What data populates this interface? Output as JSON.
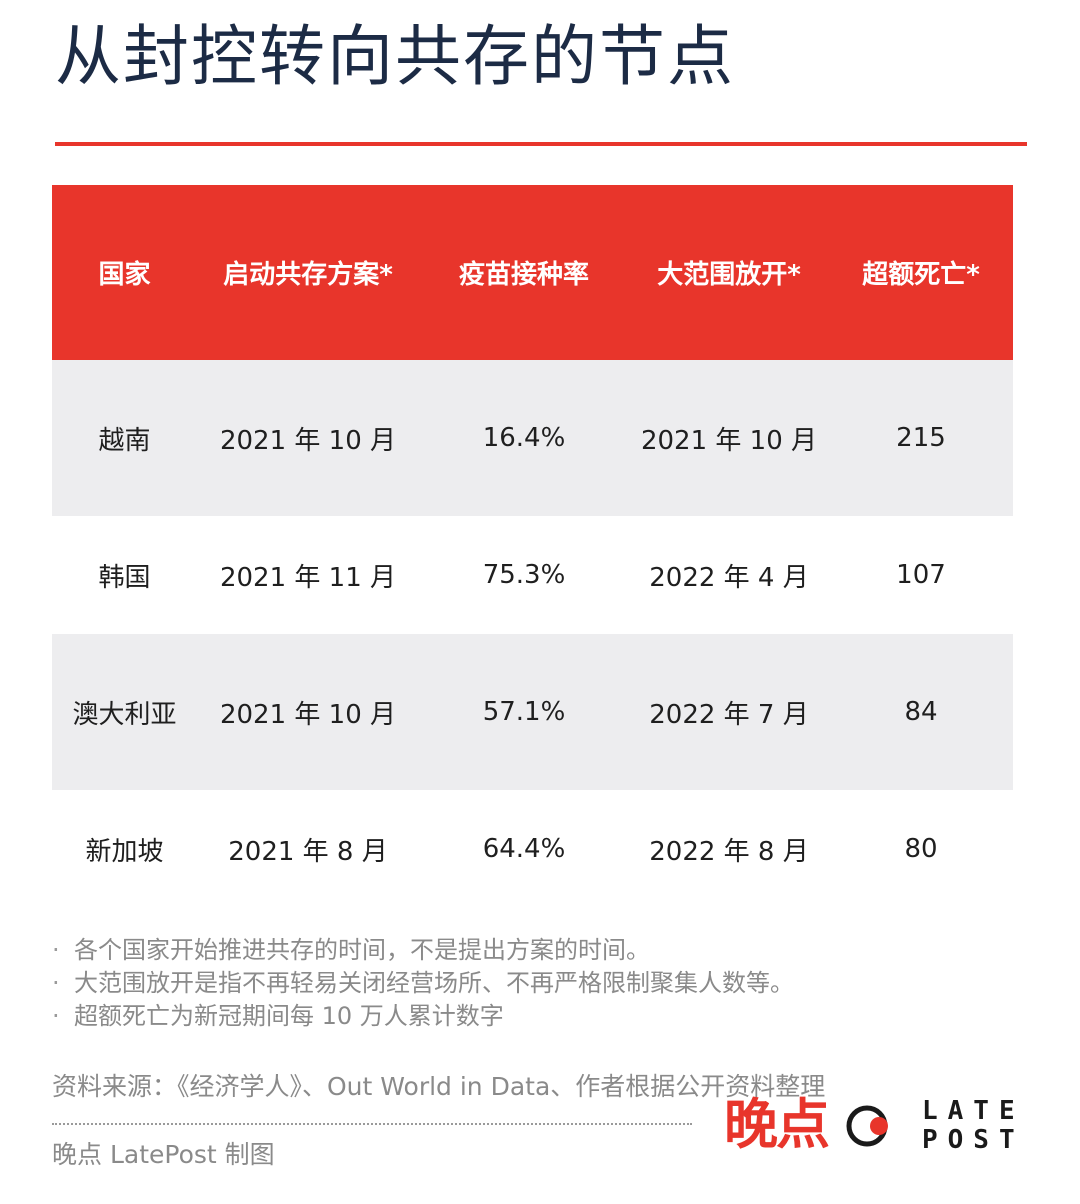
{
  "title": "从封控转向共存的节点",
  "colors": {
    "accent": "#e8352b",
    "title": "#1c2b45",
    "shaded_row": "#ededef",
    "note_text": "#8a8a8a"
  },
  "table": {
    "headers": [
      "国家",
      "启动共存方案*",
      "疫苗接种率",
      "大范围放开*",
      "超额死亡*"
    ],
    "rows": [
      [
        "越南",
        "2021 年 10 月",
        "16.4%",
        "2021 年 10 月",
        "215"
      ],
      [
        "韩国",
        "2021 年 11 月",
        "75.3%",
        "2022 年 4 月",
        "107"
      ],
      [
        "澳大利亚",
        "2021 年 10 月",
        "57.1%",
        "2022 年 7 月",
        "84"
      ],
      [
        "新加坡",
        "2021 年 8 月",
        "64.4%",
        "2022 年 8 月",
        "80"
      ]
    ]
  },
  "notes": {
    "bullet": "·",
    "items": [
      "各个国家开始推进共存的时间，不是提出方案的时间。",
      "大范围放开是指不再轻易关闭经营场所、不再严格限制聚集人数等。",
      "超额死亡为新冠期间每 10 万人累计数字"
    ]
  },
  "source": "资料来源：《经济学人》、Out World in Data、作者根据公开资料整理",
  "credit": "晚点 LatePost 制图",
  "logo": {
    "cn": "晚点",
    "en_line1": "LATE",
    "en_line2": "POST",
    "icon": "latepost-circle-logo-icon"
  }
}
